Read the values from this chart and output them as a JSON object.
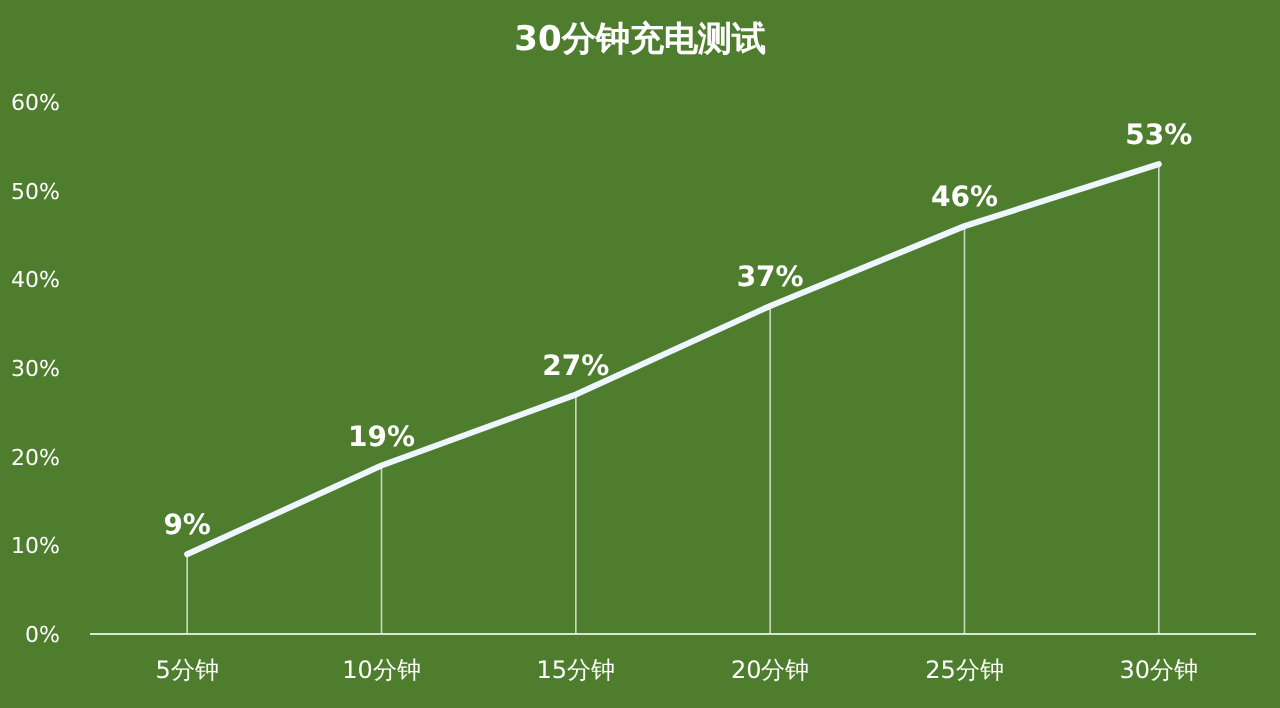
{
  "chart_data": {
    "type": "line",
    "title": "30分钟充电测试",
    "categories": [
      "5分钟",
      "10分钟",
      "15分钟",
      "20分钟",
      "25分钟",
      "30分钟"
    ],
    "series": [
      {
        "color": "#eef6ff",
        "values": [
          9,
          19,
          27,
          37,
          46,
          53
        ],
        "value_labels": [
          "9%",
          "19%",
          "27%",
          "37%",
          "46%",
          "53%"
        ]
      }
    ],
    "ylim": [
      0,
      60
    ],
    "yticks": [
      {
        "value": 0,
        "label": "0%"
      },
      {
        "value": 10,
        "label": "10%"
      },
      {
        "value": 20,
        "label": "20%"
      },
      {
        "value": 30,
        "label": "30%"
      },
      {
        "value": 40,
        "label": "40%"
      },
      {
        "value": 50,
        "label": "50%"
      },
      {
        "value": 60,
        "label": "60%"
      }
    ],
    "grid": "x",
    "marker": "none",
    "line_style": "solid"
  }
}
